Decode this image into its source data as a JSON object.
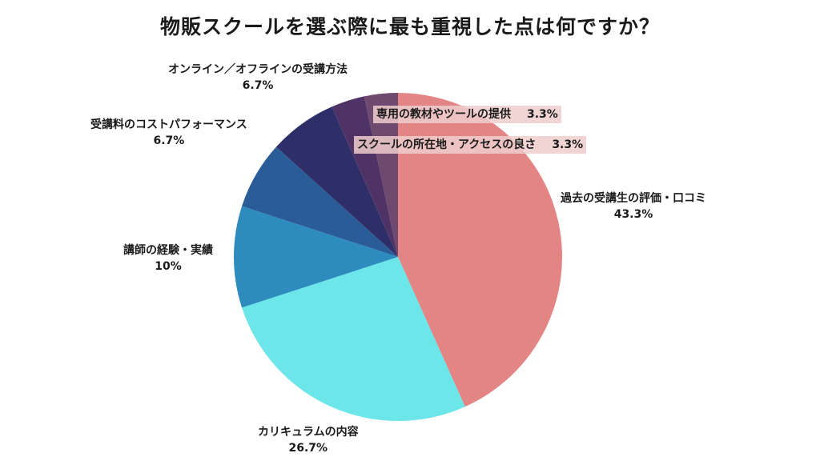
{
  "title": "物販スクールを選ぶ際に最も重視した点は何ですか？",
  "chart_data": {
    "type": "pie",
    "title": "物販スクールを選ぶ際に最も重視した点は何ですか？",
    "slices": [
      {
        "label": "過去の受講生の評価・口コミ",
        "value": 43.3,
        "display": "43.3%",
        "color": "#E38585"
      },
      {
        "label": "カリキュラムの内容",
        "value": 26.7,
        "display": "26.7%",
        "color": "#6CE6E8"
      },
      {
        "label": "講師の経験・実績",
        "value": 10,
        "display": "10%",
        "color": "#2E8BBE"
      },
      {
        "label": "受講料のコストパフォーマンス",
        "value": 6.7,
        "display": "6.7%",
        "color": "#2A5D97"
      },
      {
        "label": "オンライン／オフラインの受講方法",
        "value": 6.7,
        "display": "6.7%",
        "color": "#2E2F68"
      },
      {
        "label": "スクールの所在地・アクセスの良さ",
        "value": 3.3,
        "display": "3.3%",
        "color": "#4F3366"
      },
      {
        "label": "専用の教材やツールの提供",
        "value": 3.3,
        "display": "3.3%",
        "color": "#6E4A6E"
      }
    ]
  }
}
